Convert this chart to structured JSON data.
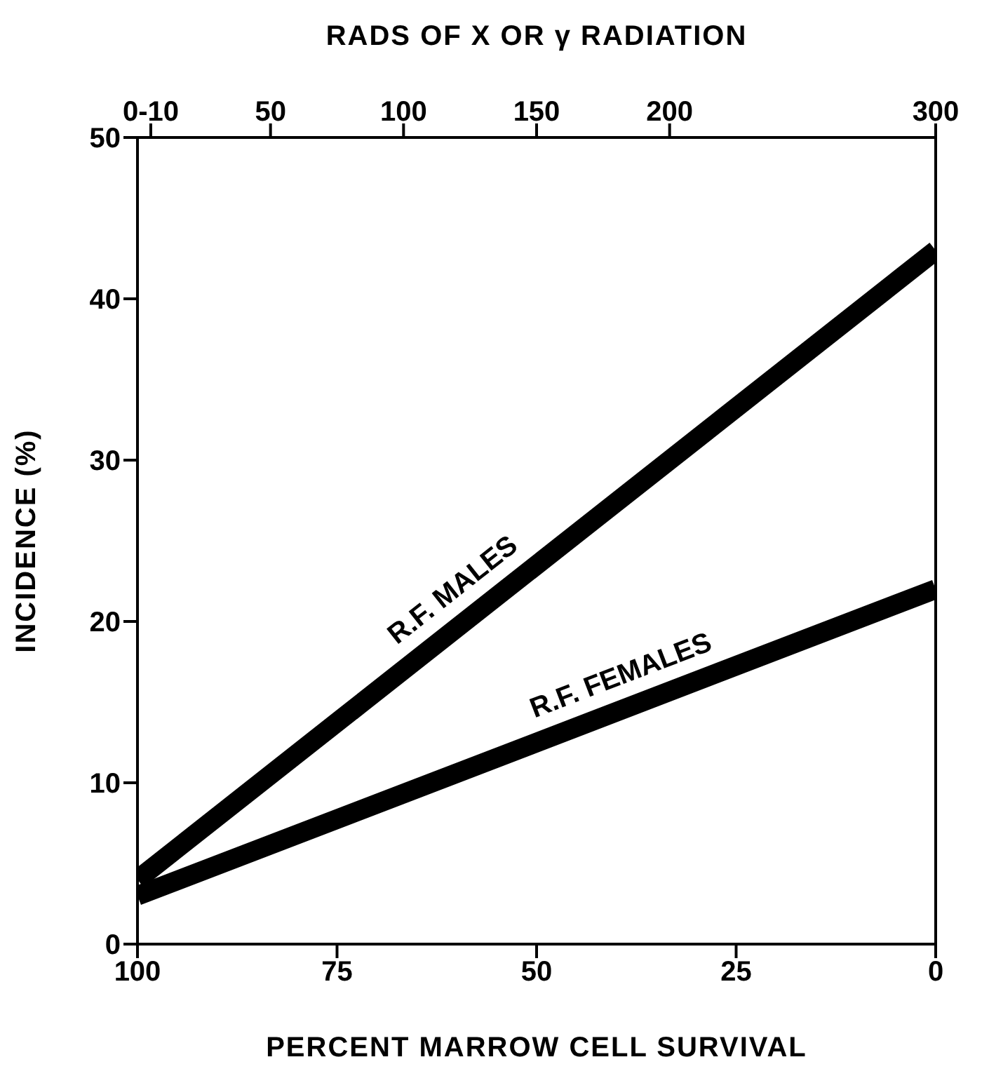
{
  "chart_data": {
    "type": "line",
    "xlabel": "PERCENT MARROW CELL SURVIVAL",
    "ylabel": "INCIDENCE (%)",
    "x2label": "RADS OF X OR γ RADIATION",
    "x": [
      100,
      0
    ],
    "series": [
      {
        "name": "R.F. MALES",
        "color": "#000000",
        "values": [
          4,
          43
        ]
      },
      {
        "name": "R.F. FEMALES",
        "color": "#000000",
        "values": [
          3,
          22
        ]
      }
    ],
    "xlim": [
      100,
      0
    ],
    "xticks": [
      100,
      75,
      50,
      25,
      0
    ],
    "x2lim": [
      0,
      300
    ],
    "x2ticks": [
      {
        "value": 5,
        "label": "0-10"
      },
      50,
      100,
      150,
      200,
      300
    ],
    "ylim": [
      0,
      50
    ],
    "yticks": [
      0,
      10,
      20,
      30,
      40,
      50
    ],
    "grid": false,
    "legend": false,
    "marker": "none",
    "line_style": "solid"
  }
}
